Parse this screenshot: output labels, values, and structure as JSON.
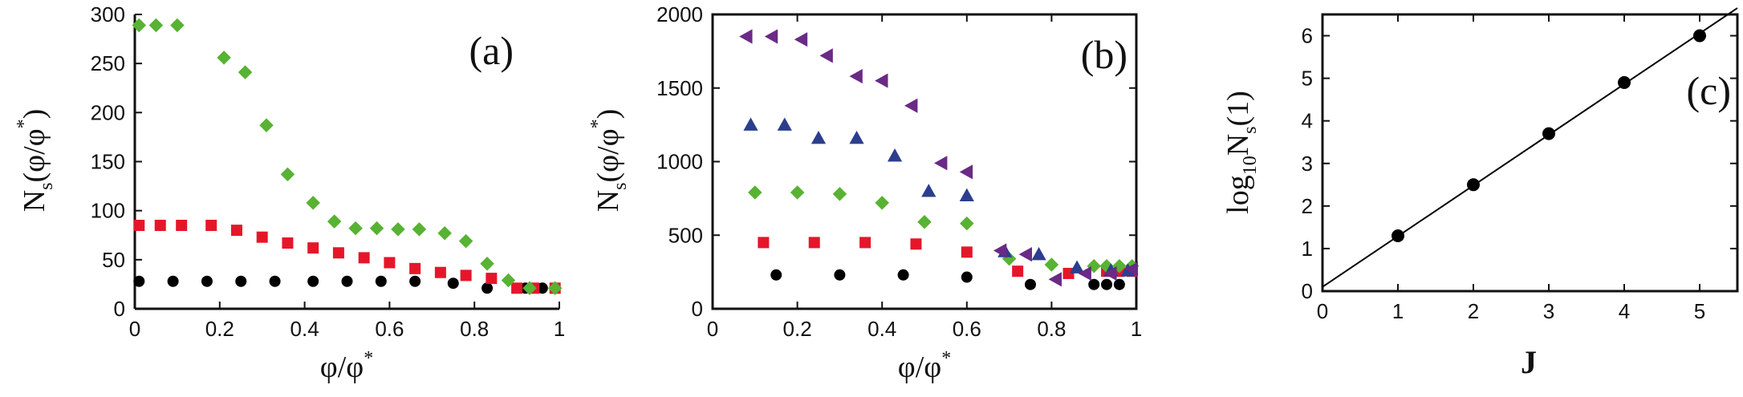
{
  "chart_data": [
    {
      "type": "scatter",
      "panel_label": "(a)",
      "xlabel": {
        "main": "φ/φ",
        "sup": "*"
      },
      "ylabel": {
        "main": "N",
        "sub": "s",
        "rest": "(φ/φ",
        "sup": "*",
        "end": ")"
      },
      "xlim": [
        0,
        1
      ],
      "ylim": [
        0,
        300
      ],
      "xticks": [
        0,
        0.2,
        0.4,
        0.6,
        0.8,
        1
      ],
      "xtick_labels": [
        "0",
        "0.2",
        "0.4",
        "0.6",
        "0.8",
        "1"
      ],
      "yticks": [
        0,
        50,
        100,
        150,
        200,
        250,
        300
      ],
      "ytick_labels": [
        "0",
        "50",
        "100",
        "150",
        "200",
        "250",
        "300"
      ],
      "grid": false,
      "series": [
        {
          "marker": "circle",
          "color": "#000000",
          "points": [
            [
              0.01,
              28
            ],
            [
              0.09,
              28
            ],
            [
              0.17,
              28
            ],
            [
              0.25,
              28
            ],
            [
              0.33,
              28
            ],
            [
              0.42,
              28
            ],
            [
              0.5,
              28
            ],
            [
              0.58,
              28
            ],
            [
              0.66,
              28
            ],
            [
              0.75,
              26
            ],
            [
              0.83,
              21
            ],
            [
              0.92,
              21
            ],
            [
              0.96,
              21
            ],
            [
              0.99,
              21
            ]
          ]
        },
        {
          "marker": "square",
          "color": "#e5162a",
          "points": [
            [
              0.01,
              85
            ],
            [
              0.06,
              85
            ],
            [
              0.11,
              85
            ],
            [
              0.18,
              85
            ],
            [
              0.24,
              80
            ],
            [
              0.3,
              73
            ],
            [
              0.36,
              67
            ],
            [
              0.42,
              62
            ],
            [
              0.48,
              57
            ],
            [
              0.54,
              52
            ],
            [
              0.6,
              47
            ],
            [
              0.66,
              41
            ],
            [
              0.72,
              37
            ],
            [
              0.78,
              34
            ],
            [
              0.84,
              31
            ],
            [
              0.9,
              21
            ],
            [
              0.94,
              21
            ],
            [
              0.99,
              21
            ]
          ]
        },
        {
          "marker": "diamond",
          "color": "#58b233",
          "points": [
            [
              0.01,
              289
            ],
            [
              0.05,
              289
            ],
            [
              0.1,
              289
            ],
            [
              0.21,
              256
            ],
            [
              0.26,
              241
            ],
            [
              0.31,
              187
            ],
            [
              0.36,
              137
            ],
            [
              0.42,
              108
            ],
            [
              0.47,
              89
            ],
            [
              0.52,
              82
            ],
            [
              0.57,
              82
            ],
            [
              0.62,
              81
            ],
            [
              0.67,
              81
            ],
            [
              0.73,
              77
            ],
            [
              0.78,
              69
            ],
            [
              0.83,
              46
            ],
            [
              0.88,
              29
            ],
            [
              0.93,
              21
            ],
            [
              0.99,
              21
            ]
          ]
        }
      ]
    },
    {
      "type": "scatter",
      "panel_label": "(b)",
      "xlabel": {
        "main": "φ/φ",
        "sup": "*"
      },
      "ylabel": {
        "main": "N",
        "sub": "s",
        "rest": "(φ/φ",
        "sup": "*",
        "end": ")"
      },
      "xlim": [
        0,
        1
      ],
      "ylim": [
        0,
        2000
      ],
      "xticks": [
        0,
        0.2,
        0.4,
        0.6,
        0.8,
        1
      ],
      "xtick_labels": [
        "0",
        "0.2",
        "0.4",
        "0.6",
        "0.8",
        "1"
      ],
      "yticks": [
        0,
        500,
        1000,
        1500,
        2000
      ],
      "ytick_labels": [
        "0",
        "500",
        "1000",
        "1500",
        "2000"
      ],
      "grid": false,
      "series": [
        {
          "marker": "circle",
          "color": "#000000",
          "points": [
            [
              0.15,
              230
            ],
            [
              0.3,
              230
            ],
            [
              0.45,
              230
            ],
            [
              0.6,
              215
            ],
            [
              0.75,
              165
            ],
            [
              0.9,
              165
            ],
            [
              0.93,
              165
            ],
            [
              0.96,
              165
            ]
          ]
        },
        {
          "marker": "square",
          "color": "#e5162a",
          "points": [
            [
              0.12,
              450
            ],
            [
              0.24,
              450
            ],
            [
              0.36,
              450
            ],
            [
              0.48,
              440
            ],
            [
              0.6,
              385
            ],
            [
              0.72,
              255
            ],
            [
              0.84,
              240
            ],
            [
              0.93,
              255
            ],
            [
              0.96,
              255
            ],
            [
              0.99,
              255
            ]
          ]
        },
        {
          "marker": "diamond",
          "color": "#58b233",
          "points": [
            [
              0.1,
              790
            ],
            [
              0.2,
              790
            ],
            [
              0.3,
              780
            ],
            [
              0.4,
              720
            ],
            [
              0.5,
              590
            ],
            [
              0.6,
              580
            ],
            [
              0.7,
              340
            ],
            [
              0.8,
              300
            ],
            [
              0.9,
              290
            ],
            [
              0.93,
              290
            ],
            [
              0.96,
              290
            ],
            [
              0.99,
              290
            ]
          ]
        },
        {
          "marker": "triangle-up",
          "color": "#2b3e8e",
          "points": [
            [
              0.09,
              1250
            ],
            [
              0.17,
              1250
            ],
            [
              0.25,
              1160
            ],
            [
              0.34,
              1160
            ],
            [
              0.43,
              1040
            ],
            [
              0.51,
              800
            ],
            [
              0.6,
              770
            ],
            [
              0.69,
              390
            ],
            [
              0.77,
              370
            ],
            [
              0.86,
              280
            ],
            [
              0.94,
              260
            ],
            [
              0.98,
              260
            ]
          ]
        },
        {
          "marker": "triangle-left",
          "color": "#6a2a86",
          "points": [
            [
              0.08,
              1850
            ],
            [
              0.14,
              1850
            ],
            [
              0.21,
              1830
            ],
            [
              0.27,
              1720
            ],
            [
              0.34,
              1580
            ],
            [
              0.4,
              1550
            ],
            [
              0.47,
              1380
            ],
            [
              0.54,
              990
            ],
            [
              0.6,
              930
            ],
            [
              0.68,
              395
            ],
            [
              0.74,
              370
            ],
            [
              0.81,
              200
            ],
            [
              0.88,
              240
            ],
            [
              0.94,
              240
            ],
            [
              0.99,
              270
            ]
          ]
        }
      ]
    },
    {
      "type": "scatter",
      "panel_label": "(c)",
      "xlabel": {
        "main": "J"
      },
      "ylabel": {
        "main": "log",
        "sub": "10",
        "rest": "N",
        "sub2": "s",
        "end": "(1)"
      },
      "xlim": [
        0,
        5.5
      ],
      "ylim": [
        0,
        6.5
      ],
      "xticks": [
        0,
        1,
        2,
        3,
        4,
        5
      ],
      "xtick_labels": [
        "0",
        "1",
        "2",
        "3",
        "4",
        "5"
      ],
      "yticks": [
        0,
        1,
        2,
        3,
        4,
        5,
        6
      ],
      "ytick_labels": [
        "0",
        "1",
        "2",
        "3",
        "4",
        "5",
        "6"
      ],
      "grid": false,
      "series": [
        {
          "marker": "circle",
          "color": "#000000",
          "points": [
            [
              1,
              1.3
            ],
            [
              2,
              2.5
            ],
            [
              3,
              3.7
            ],
            [
              4,
              4.9
            ],
            [
              5,
              6.0
            ]
          ]
        }
      ],
      "fit_line": {
        "x": [
          0,
          5.5
        ],
        "y": [
          0.1,
          6.65
        ],
        "color": "#000000"
      }
    }
  ]
}
